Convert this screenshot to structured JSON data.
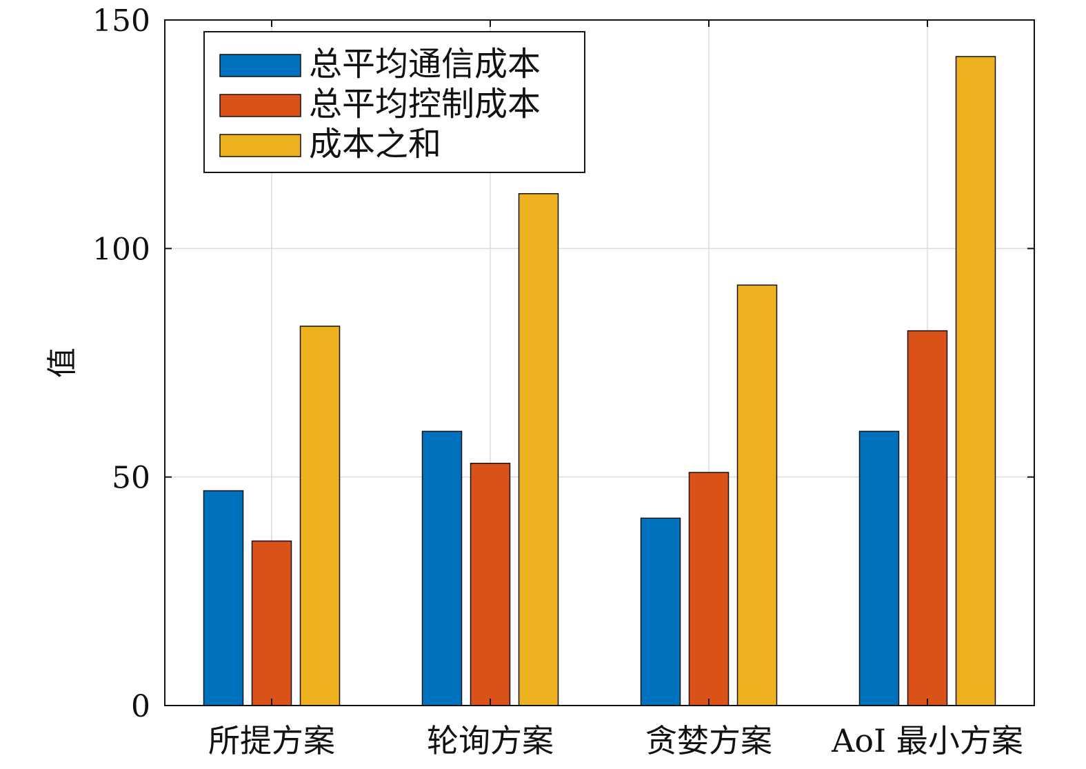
{
  "chart_data": {
    "type": "bar",
    "title": "",
    "xlabel": "",
    "ylabel": "值",
    "ylim": [
      0,
      150
    ],
    "yticks": [
      0,
      50,
      100,
      150
    ],
    "grid": true,
    "legend_position": "top-left",
    "categories": [
      "所提方案",
      "轮询方案",
      "贪婪方案",
      "AoI 最小方案"
    ],
    "series": [
      {
        "name": "总平均通信成本",
        "color": "#0072BD",
        "values": [
          47,
          60,
          41,
          60
        ]
      },
      {
        "name": "总平均控制成本",
        "color": "#D95319",
        "values": [
          36,
          53,
          51,
          82
        ]
      },
      {
        "name": "成本之和",
        "color": "#EDB120",
        "values": [
          83,
          112,
          92,
          142
        ]
      }
    ]
  }
}
